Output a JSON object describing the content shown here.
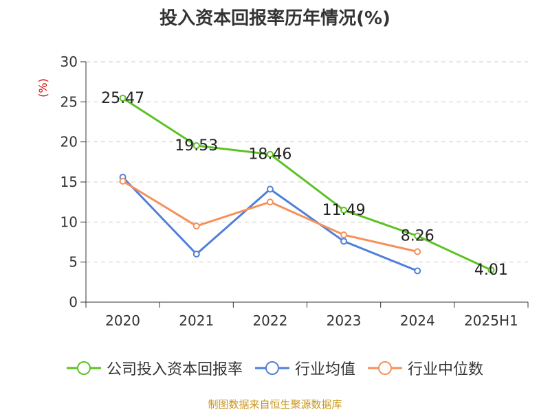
{
  "chart_data": {
    "type": "line",
    "title": "投入资本回报率历年情况(%)",
    "ylabel": "(%)",
    "categories": [
      "2020",
      "2021",
      "2022",
      "2023",
      "2024",
      "2025H1"
    ],
    "ylim": [
      0,
      30
    ],
    "yticks": [
      0,
      5,
      10,
      15,
      20,
      25,
      30
    ],
    "grid": true,
    "legend_position": "bottom",
    "series": [
      {
        "name": "公司投入资本回报率",
        "color": "#5cc223",
        "values": [
          25.47,
          19.53,
          18.46,
          11.49,
          8.26,
          4.01
        ],
        "labels": true
      },
      {
        "name": "行业均值",
        "color": "#4f7fd8",
        "values": [
          15.6,
          6.0,
          14.1,
          7.6,
          3.9,
          null
        ],
        "labels": false
      },
      {
        "name": "行业中位数",
        "color": "#f5915a",
        "values": [
          15.1,
          9.5,
          12.5,
          8.4,
          6.3,
          null
        ],
        "labels": false
      }
    ]
  },
  "source": "制图数据来自恒生聚源数据库"
}
